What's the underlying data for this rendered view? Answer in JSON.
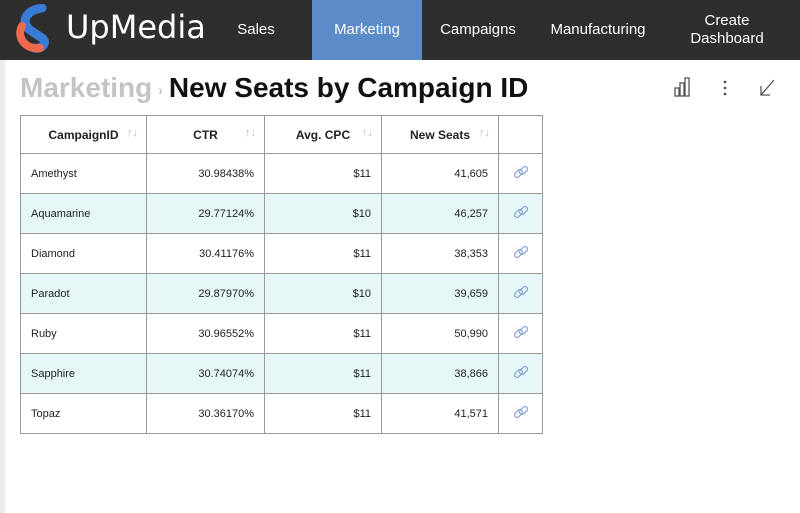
{
  "header": {
    "brand": "UpMedia",
    "nav": [
      "Sales",
      "Marketing",
      "Campaigns",
      "Manufacturing",
      "Create Dashboard"
    ],
    "active": "Marketing"
  },
  "breadcrumb": {
    "parent": "Marketing",
    "title": "New Seats by Campaign ID"
  },
  "table": {
    "columns": [
      "CampaignID",
      "CTR",
      "Avg. CPC",
      "New Seats"
    ],
    "rows": [
      [
        "Amethyst",
        "30.98438%",
        "$11",
        "41,605"
      ],
      [
        "Aquamarine",
        "29.77124%",
        "$10",
        "46,257"
      ],
      [
        "Diamond",
        "30.41176%",
        "$11",
        "38,353"
      ],
      [
        "Paradot",
        "29.87970%",
        "$10",
        "39,659"
      ],
      [
        "Ruby",
        "30.96552%",
        "$11",
        "50,990"
      ],
      [
        "Sapphire",
        "30.74074%",
        "$11",
        "38,866"
      ],
      [
        "Topaz",
        "30.36170%",
        "$11",
        "41,571"
      ]
    ]
  }
}
